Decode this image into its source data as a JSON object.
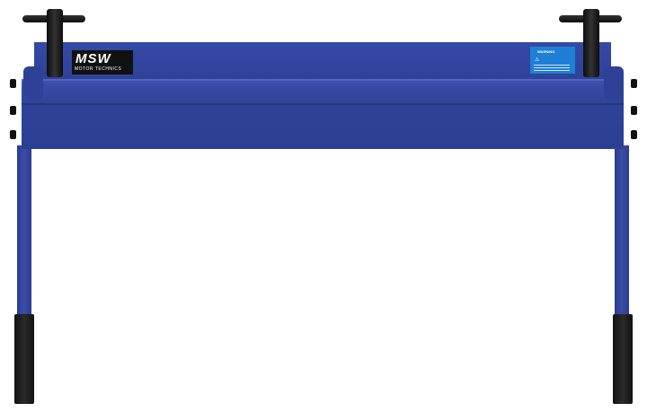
{
  "product": {
    "logo": {
      "brand": "MSW",
      "subtitle": "MOTOR TECHNICS"
    },
    "warning_label": {
      "title": "WARNING",
      "color": "#1f7fd6"
    },
    "colors": {
      "frame": "#2f4399",
      "handles": "#111111"
    }
  }
}
